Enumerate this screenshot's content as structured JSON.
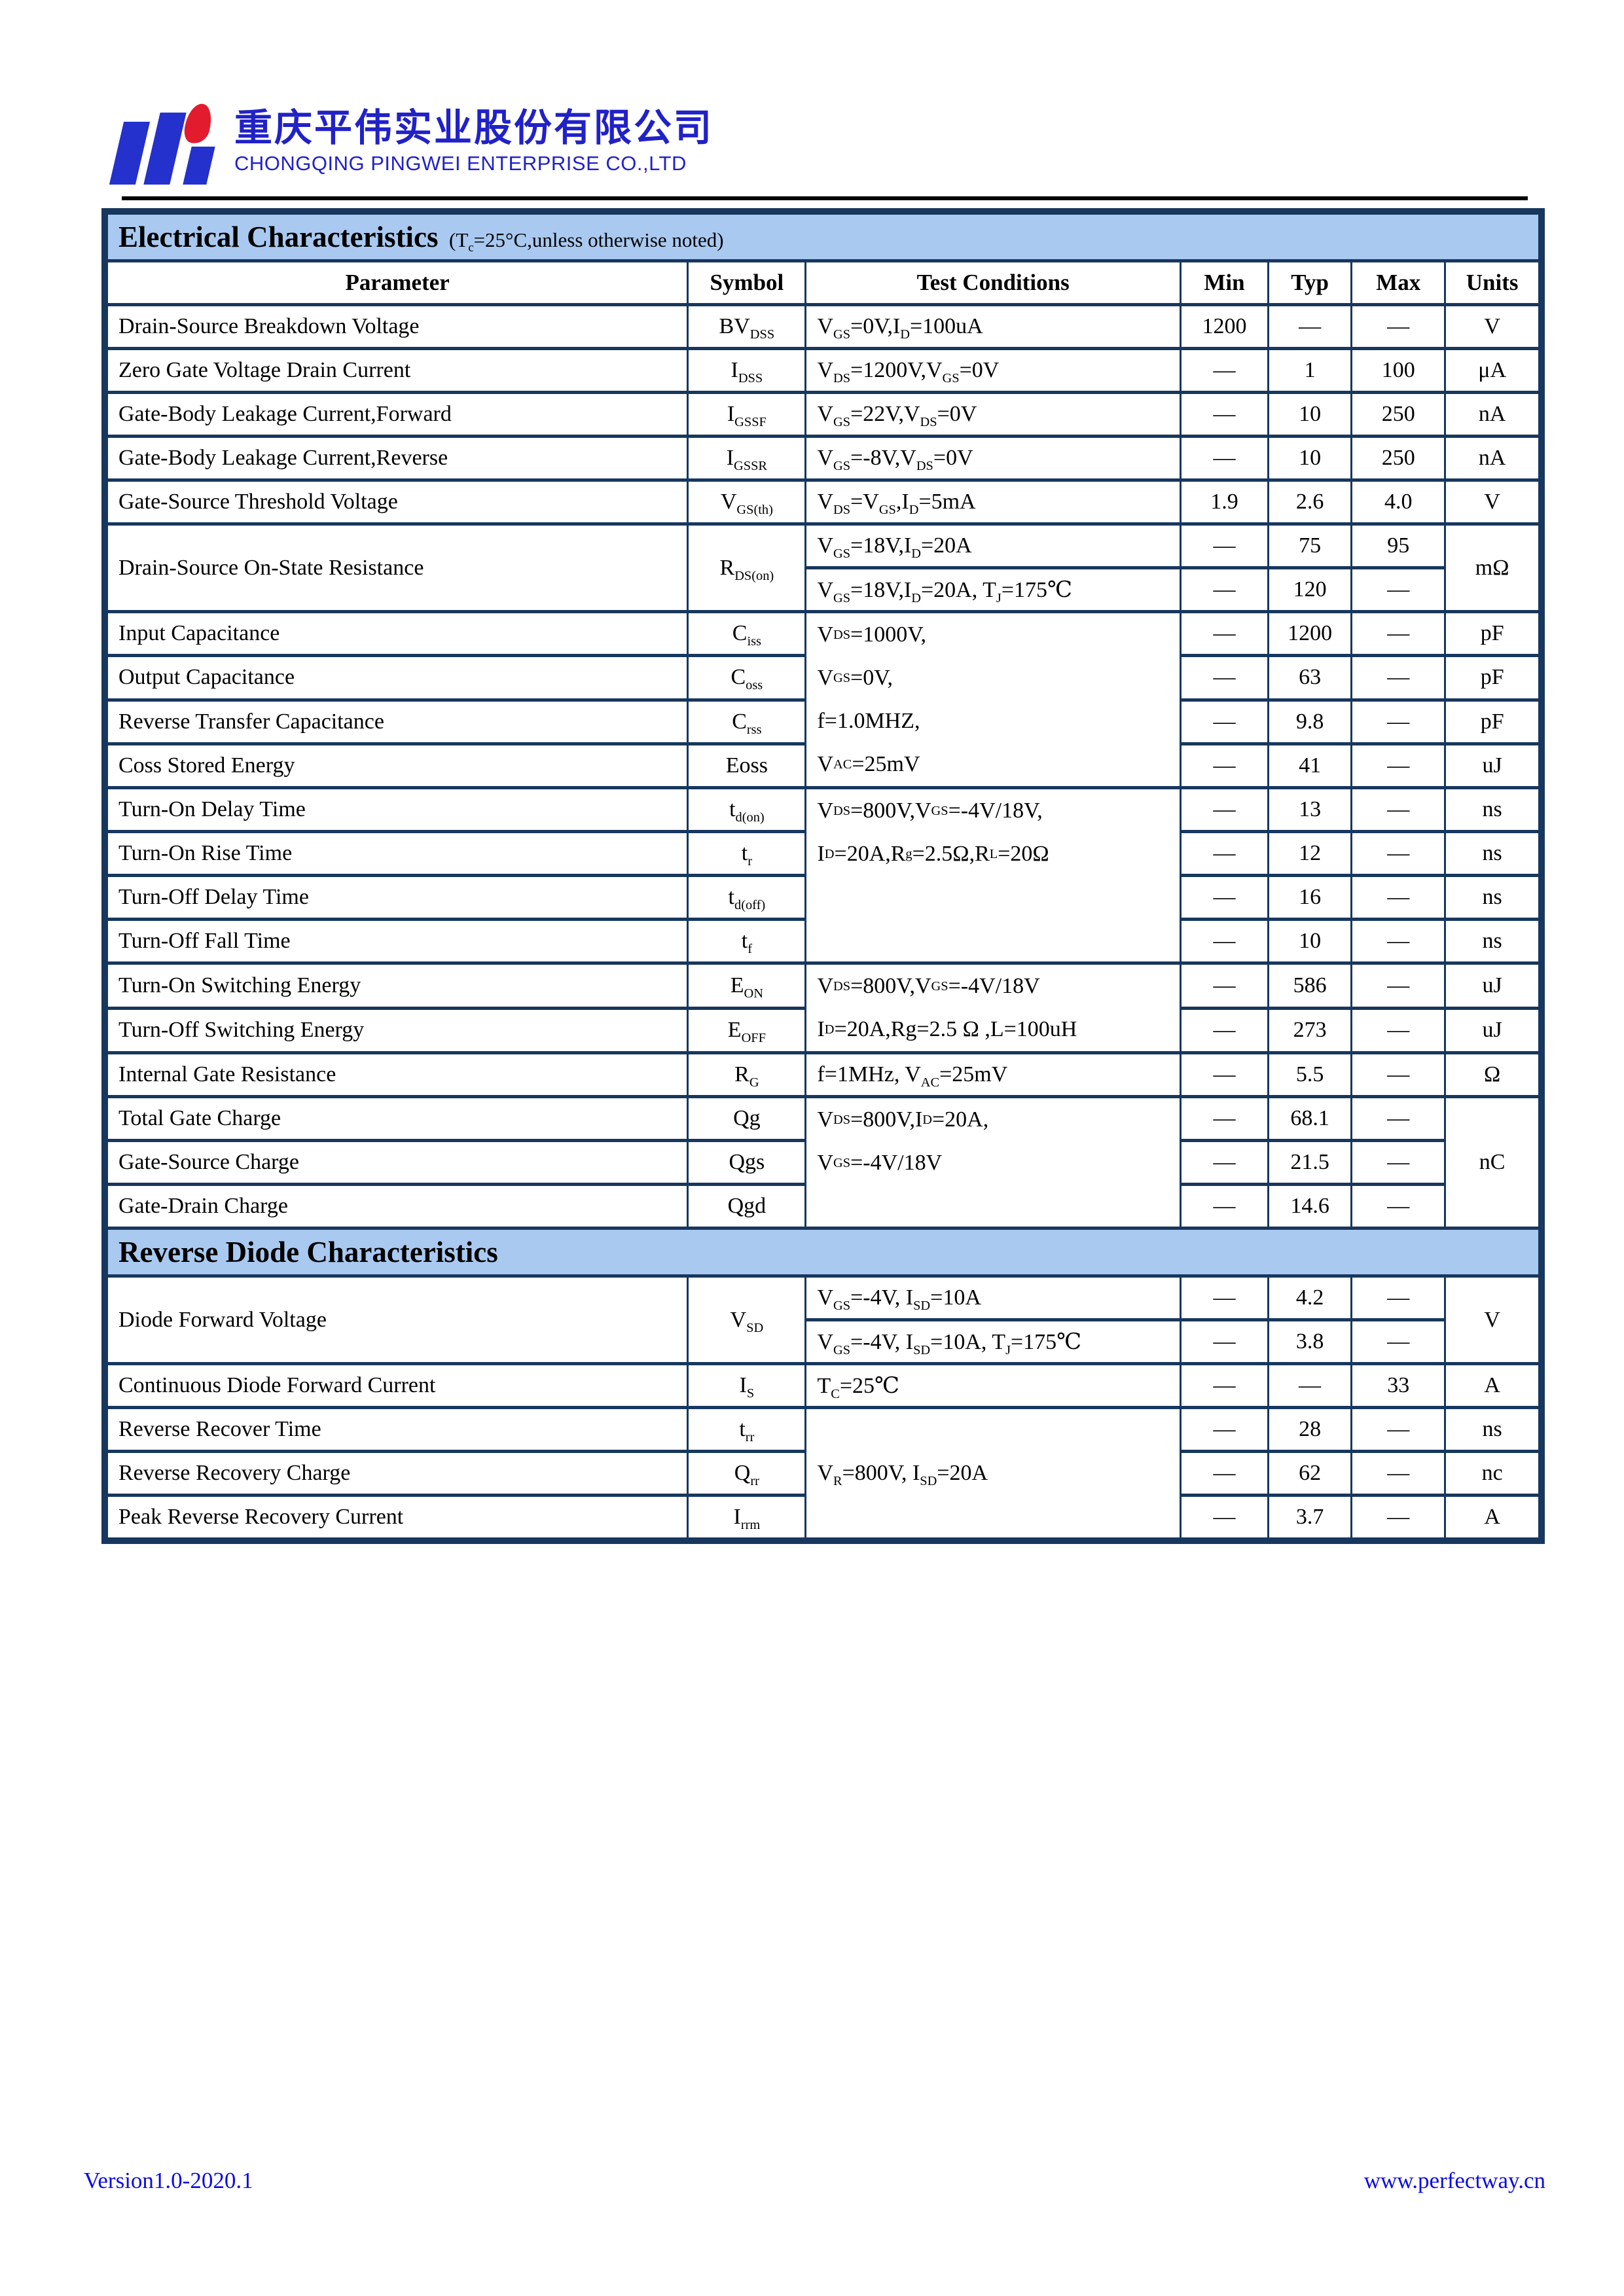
{
  "header": {
    "company_cn": "重庆平伟实业股份有限公司",
    "company_en": "CHONGQING PINGWEI ENTERPRISE CO.,LTD"
  },
  "columns": [
    "Parameter",
    "Symbol",
    "Test Conditions",
    "Min",
    "Typ",
    "Max",
    "Units"
  ],
  "electrical": {
    "title": "Electrical Characteristics",
    "title_note": "(T~c~=25°C,unless otherwise noted)",
    "rows": [
      {
        "param": "Drain-Source Breakdown Voltage",
        "symbol": "BV~DSS~",
        "cond": "V~GS~=0V,I~D~=100uA",
        "min": "1200",
        "typ": "—",
        "max": "—",
        "units": "V"
      },
      {
        "param": "Zero Gate Voltage Drain Current",
        "symbol": "I~DSS~",
        "cond": "V~DS~=1200V,V~GS~=0V",
        "min": "—",
        "typ": "1",
        "max": "100",
        "units": "μA"
      },
      {
        "param": "Gate-Body Leakage Current,Forward",
        "symbol": "I~GSSF~",
        "cond": "V~GS~=22V,V~DS~=0V",
        "min": "—",
        "typ": "10",
        "max": "250",
        "units": "nA"
      },
      {
        "param": "Gate-Body Leakage Current,Reverse",
        "symbol": "I~GSSR~",
        "cond": "V~GS~=-8V,V~DS~=0V",
        "min": "—",
        "typ": "10",
        "max": "250",
        "units": "nA"
      },
      {
        "param": "Gate-Source Threshold Voltage",
        "symbol": "V~GS(th)~",
        "cond": "V~DS~=V~GS~,I~D~=5mA",
        "min": "1.9",
        "typ": "2.6",
        "max": "4.0",
        "units": "V"
      },
      {
        "param": "Drain-Source On-State Resistance",
        "symbol": "R~DS(on)~",
        "cond": "V~GS~=18V,I~D~=20A",
        "min": "—",
        "typ": "75",
        "max": "95",
        "units": "mΩ"
      },
      {
        "cond": "V~GS~=18V,I~D~=20A, T~J~=175℃",
        "min": "—",
        "typ": "120",
        "max": "—"
      },
      {
        "param": "Input Capacitance",
        "symbol": "C~iss~",
        "cond_lines": [
          "V~DS~=1000V,",
          "V~GS~=0V,",
          "f=1.0MHZ,",
          "V~AC~=25mV"
        ],
        "min": "—",
        "typ": "1200",
        "max": "—",
        "units": "pF"
      },
      {
        "param": "Output Capacitance",
        "symbol": "C~oss~",
        "min": "—",
        "typ": "63",
        "max": "—",
        "units": "pF"
      },
      {
        "param": "Reverse Transfer Capacitance",
        "symbol": "C~rss~",
        "min": "—",
        "typ": "9.8",
        "max": "—",
        "units": "pF"
      },
      {
        "param": "Coss Stored Energy",
        "symbol": "Eoss",
        "min": "—",
        "typ": "41",
        "max": "—",
        "units": "uJ"
      },
      {
        "param": "Turn-On Delay Time",
        "symbol": "t~d(on)~",
        "cond_lines": [
          "V~DS~=800V,V~GS~=-4V/18V,",
          "I~D~=20A,R~g~=2.5Ω,R~L~=20Ω"
        ],
        "min": "—",
        "typ": "13",
        "max": "—",
        "units": "ns"
      },
      {
        "param": "Turn-On Rise Time",
        "symbol": "t~r~",
        "min": "—",
        "typ": "12",
        "max": "—",
        "units": "ns"
      },
      {
        "param": "Turn-Off Delay Time",
        "symbol": "t~d(off)~",
        "min": "—",
        "typ": "16",
        "max": "—",
        "units": "ns"
      },
      {
        "param": "Turn-Off Fall Time",
        "symbol": "t~f~",
        "min": "—",
        "typ": "10",
        "max": "—",
        "units": "ns"
      },
      {
        "param": "Turn-On Switching Energy",
        "symbol": "E~ON~",
        "cond_lines": [
          "V~DS~=800V,V~GS~=-4V/18V",
          "I~D~=20A,Rg=2.5 Ω ,L=100uH"
        ],
        "min": "—",
        "typ": "586",
        "max": "—",
        "units": "uJ"
      },
      {
        "param": "Turn-Off Switching Energy",
        "symbol": "E~OFF~",
        "min": "—",
        "typ": "273",
        "max": "—",
        "units": "uJ"
      },
      {
        "param": "Internal Gate Resistance",
        "symbol": "R~G~",
        "cond": "f=1MHz, V~AC~=25mV",
        "min": "—",
        "typ": "5.5",
        "max": "—",
        "units": "Ω"
      },
      {
        "param": "Total Gate Charge",
        "symbol": "Qg",
        "cond_lines": [
          "V~DS~=800V,I~D~=20A,",
          "V~GS~=-4V/18V"
        ],
        "min": "—",
        "typ": "68.1",
        "max": "—",
        "units": "nC"
      },
      {
        "param": "Gate-Source Charge",
        "symbol": "Qgs",
        "min": "—",
        "typ": "21.5",
        "max": "—"
      },
      {
        "param": "Gate-Drain Charge",
        "symbol": "Qgd",
        "min": "—",
        "typ": "14.6",
        "max": "—"
      }
    ]
  },
  "diode": {
    "title": "Reverse Diode Characteristics",
    "rows": [
      {
        "param": "Diode Forward Voltage",
        "symbol": "V~SD~",
        "cond": "V~GS~=-4V, I~SD~=10A",
        "min": "—",
        "typ": "4.2",
        "max": "—",
        "units": "V"
      },
      {
        "cond": "V~GS~=-4V, I~SD~=10A, T~J~=175℃",
        "min": "—",
        "typ": "3.8",
        "max": "—"
      },
      {
        "param": "Continuous Diode Forward Current",
        "symbol": "I~S~",
        "cond": "T~C~=25℃",
        "min": "—",
        "typ": "—",
        "max": "33",
        "units": "A"
      },
      {
        "param": "Reverse Recover Time",
        "symbol": "t~rr~",
        "cond": "V~R~=800V, I~SD~=20A",
        "min": "—",
        "typ": "28",
        "max": "—",
        "units": "ns"
      },
      {
        "param": "Reverse Recovery Charge",
        "symbol": "Q~rr~",
        "min": "—",
        "typ": "62",
        "max": "—",
        "units": "nc"
      },
      {
        "param": "Peak Reverse Recovery Current",
        "symbol": "I~rrm~",
        "min": "—",
        "typ": "3.7",
        "max": "—",
        "units": "A"
      }
    ]
  },
  "footer": {
    "version": "Version1.0-2020.1",
    "website": "www.perfectway.cn"
  },
  "colors": {
    "table_border": "#17375e",
    "section_bar_bg": "#a9c9f0",
    "brand_blue": "#2121c8",
    "footer_blue": "#0b0be4",
    "logo_blue": "#2431cd",
    "logo_red": "#e31b2e"
  }
}
